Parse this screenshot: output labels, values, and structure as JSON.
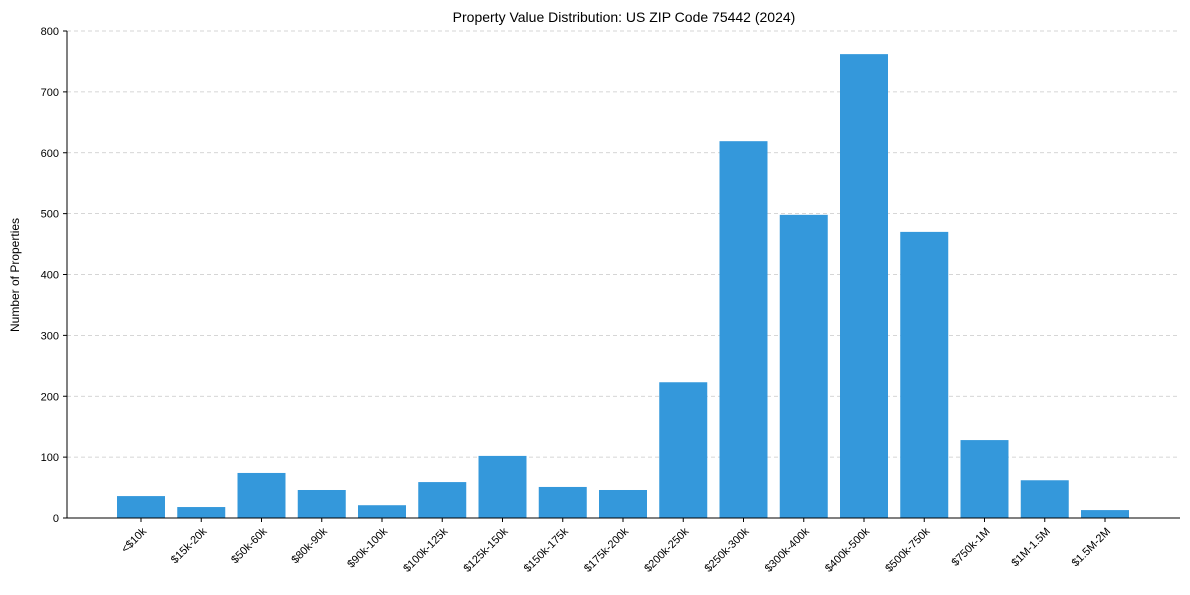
{
  "chart_data": {
    "type": "bar",
    "title": "Property Value Distribution: US ZIP Code 75442 (2024)",
    "xlabel": "",
    "ylabel": "Number of Properties",
    "ylim": [
      0,
      800
    ],
    "yticks": [
      0,
      100,
      200,
      300,
      400,
      500,
      600,
      700,
      800
    ],
    "grid": "y-dashed",
    "color": "#3498db",
    "categories": [
      "<$10k",
      "$15k-20k",
      "$50k-60k",
      "$80k-90k",
      "$90k-100k",
      "$100k-125k",
      "$125k-150k",
      "$150k-175k",
      "$175k-200k",
      "$200k-250k",
      "$250k-300k",
      "$300k-400k",
      "$400k-500k",
      "$500k-750k",
      "$750k-1M",
      "$1M-1.5M",
      "$1.5M-2M"
    ],
    "values": [
      36,
      18,
      74,
      46,
      21,
      59,
      102,
      51,
      46,
      223,
      619,
      498,
      762,
      470,
      128,
      62,
      13
    ]
  }
}
